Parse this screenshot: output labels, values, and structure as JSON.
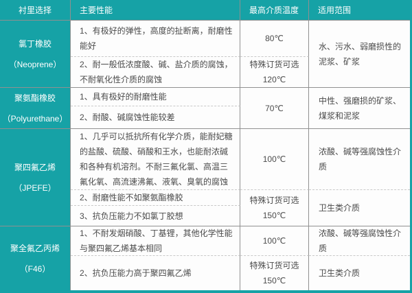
{
  "colors": {
    "accent_teal": "#16a2a6",
    "grid_line": "#909090",
    "dashed_line": "#c8c8c8",
    "body_text": "#4a4a4a"
  },
  "header": {
    "col1": "衬里选择",
    "col2": "主要性能",
    "col3": "最高介质温度",
    "col4": "适用范围"
  },
  "rows": {
    "neoprene": {
      "name": "氯丁橡胶",
      "alias": "（Neoprene）",
      "perf1": "1、有极好的弹性，高度的扯断离，耐磨性能好",
      "perf2": "2、耐一般低浓度酸、碱、盐介质的腐蚀，不耐氧化性介质的腐蚀",
      "temp1": "80℃",
      "temp2_line1": "特殊订货可选",
      "temp2_line2": "120℃",
      "range": "水、污水、弱磨损性的泥浆、矿浆"
    },
    "polyurethane": {
      "name": "聚氨酯橡胶",
      "alias": "（Polyurethane）",
      "perf1": "1、具有极好的耐磨性能",
      "perf2": "2、耐酸、碱腐蚀性能较差",
      "temp": "70℃",
      "range": "中性、强磨损的矿浆、煤浆和泥浆"
    },
    "ptfe": {
      "name": "聚四氟乙烯",
      "alias": "（JPEFE）",
      "perf1": "1、几乎可以抵抗所有化学介质，能耐妃糖的盐酸、硫酸、硝酸和王水，也能耐浓碱和各种有机溶剂。不耐三氟化氯、高温三氟化氧、高流速沸氟、液氧、臭氧的腐蚀",
      "perf2": "2、耐磨性能不如聚氨酯橡胶",
      "perf3": "3、抗负压能力不如氯丁胶想",
      "temp1": "100℃",
      "temp2_line1": "特殊订货可选",
      "temp2_line2": "150℃",
      "range1": "浓酸、碱等强腐蚀性介质",
      "range2": "卫生类介质"
    },
    "f46": {
      "name": "聚全氟乙丙烯",
      "alias": "（F46）",
      "perf1": "1、不耐发烟硝酸、丁基锂，其他化学性能与聚四氟乙烯基本相同",
      "perf2": "2、抗负压能力高于聚四氟乙烯",
      "temp1": "100℃",
      "temp2_line1": "特殊订货可选",
      "temp2_line2": "150℃",
      "range1": "浓酸、碱等强腐蚀性介质",
      "range2": "卫生类介质"
    }
  }
}
